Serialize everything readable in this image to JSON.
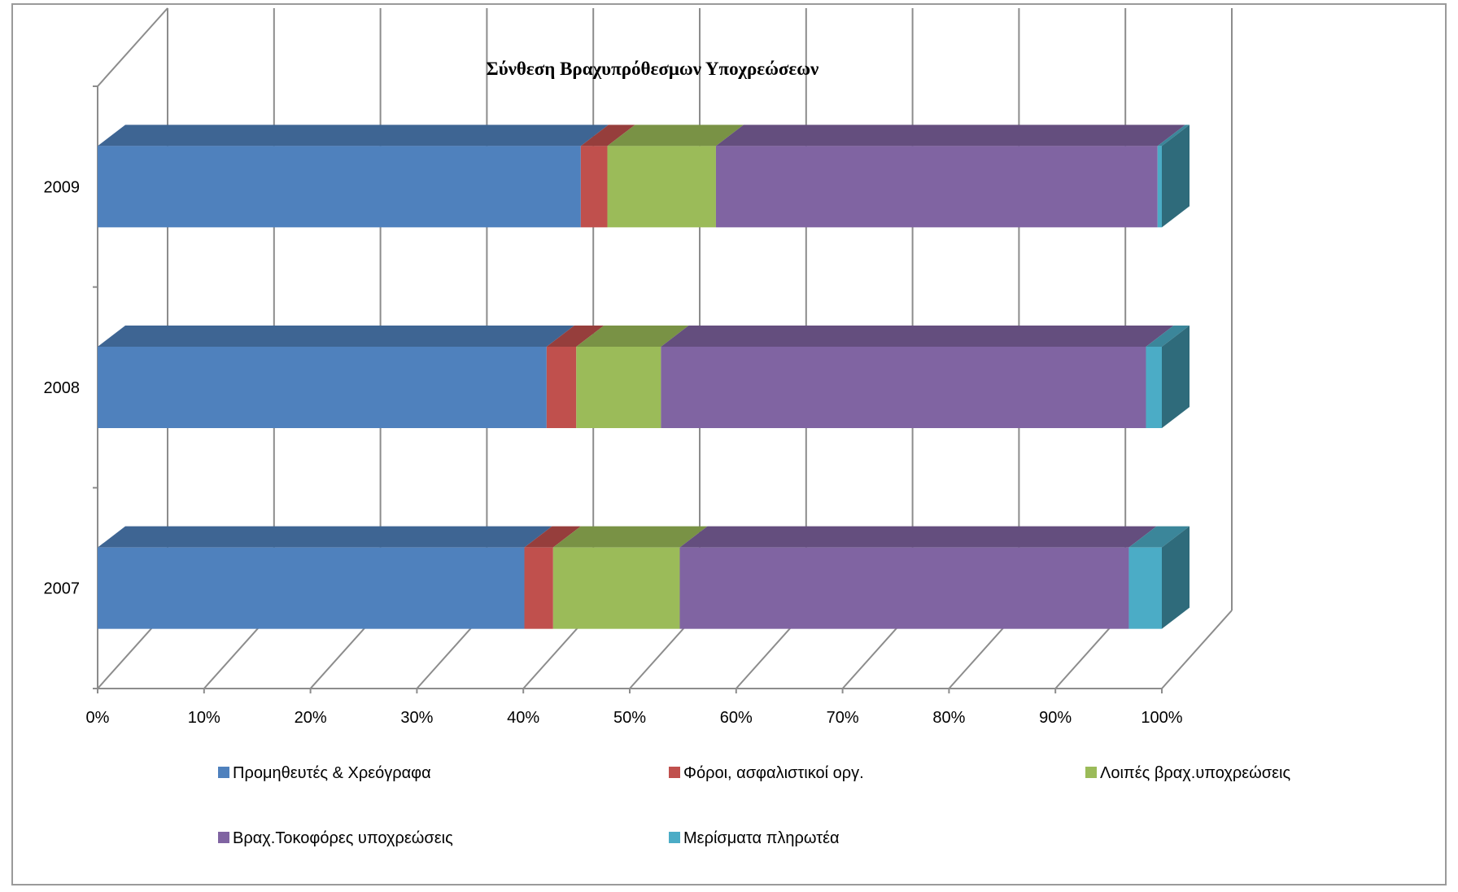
{
  "chart_data": {
    "type": "bar",
    "orientation": "horizontal",
    "stacked": "percent",
    "three_d": true,
    "title": "Σύνθεση Βραχυπρόθεσμων Υποχρεώσεων",
    "categories": [
      "2007",
      "2008",
      "2009"
    ],
    "x_ticks": [
      "0%",
      "10%",
      "20%",
      "30%",
      "40%",
      "50%",
      "60%",
      "70%",
      "80%",
      "90%",
      "100%"
    ],
    "xlim": [
      0,
      100
    ],
    "grid": true,
    "legend_position": "bottom",
    "series": [
      {
        "name": "Προμηθευτές & Χρεόγραφα",
        "color": "#4F81BD",
        "values": [
          40.1,
          42.4,
          45.4
        ]
      },
      {
        "name": "Φόροι, ασφαλιστικοί οργ.",
        "color": "#C0504D",
        "values": [
          2.7,
          2.8,
          2.5
        ]
      },
      {
        "name": "Λοιπές βραχ.υποχρεώσεις",
        "color": "#9BBB59",
        "values": [
          11.9,
          8.0,
          10.2
        ]
      },
      {
        "name": "Βραχ.Τοκοφόρες υποχρεώσεις",
        "color": "#8064A2",
        "values": [
          42.2,
          45.8,
          41.5
        ]
      },
      {
        "name": "Μερίσματα πληρωτέα",
        "color": "#4BACC6",
        "values": [
          3.1,
          1.5,
          0.4
        ]
      }
    ]
  }
}
